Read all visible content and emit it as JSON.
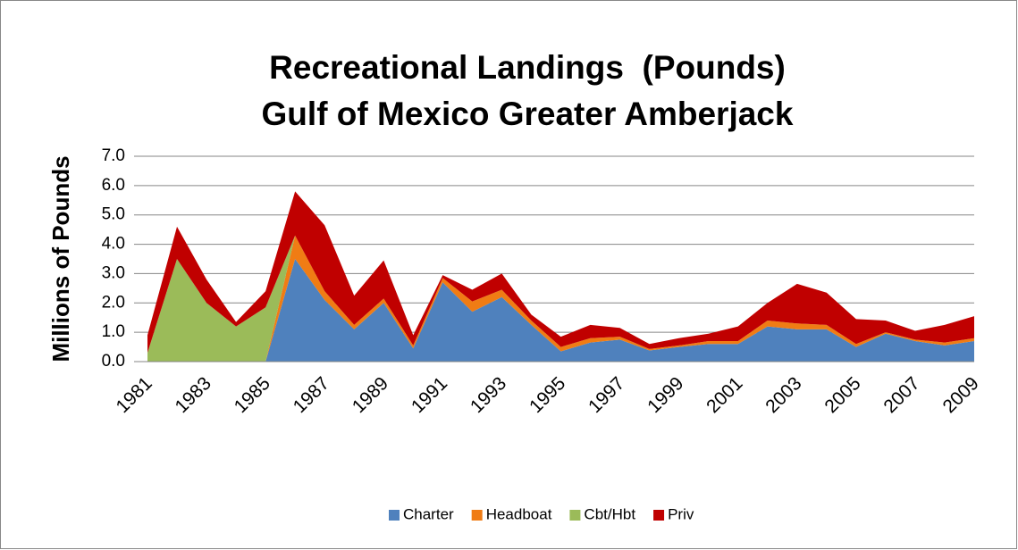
{
  "chart_data": {
    "type": "stacked_area",
    "title": "Recreational Landings  (Pounds)",
    "subtitle": "Gulf of Mexico Greater Amberjack",
    "y_label": "Millions of Pounds",
    "categories": [
      "1981",
      null,
      "1983",
      null,
      "1985",
      null,
      "1987",
      null,
      "1989",
      null,
      "1991",
      null,
      "1993",
      null,
      "1995",
      null,
      "1997",
      null,
      "1999",
      null,
      "2001",
      null,
      "2003",
      null,
      "2005",
      null,
      "2007",
      null,
      "2009"
    ],
    "series": [
      {
        "name": "Charter",
        "color": "#4f81bd",
        "values": [
          0,
          0,
          0,
          0,
          0,
          3.5,
          2.1,
          1.1,
          2.0,
          0.45,
          2.7,
          1.7,
          2.2,
          1.25,
          0.35,
          0.65,
          0.75,
          0.38,
          0.5,
          0.6,
          0.6,
          1.2,
          1.1,
          1.1,
          0.5,
          0.95,
          0.7,
          0.55,
          0.7
        ]
      },
      {
        "name": "Headboat",
        "color": "#f07c14",
        "values": [
          0,
          0,
          0,
          0,
          0,
          0.8,
          0.3,
          0.15,
          0.15,
          0.1,
          0.15,
          0.35,
          0.25,
          0.15,
          0.15,
          0.15,
          0.1,
          0.05,
          0.05,
          0.1,
          0.1,
          0.2,
          0.2,
          0.15,
          0.1,
          0.05,
          0.05,
          0.1,
          0.1
        ]
      },
      {
        "name": "Cbt/Hbt",
        "color": "#9bbb59",
        "values": [
          0.3,
          3.5,
          2.0,
          1.2,
          1.85,
          0,
          0,
          0,
          0,
          0,
          0,
          0,
          0,
          0,
          0,
          0,
          0,
          0,
          0,
          0,
          0,
          0,
          0,
          0,
          0,
          0,
          0,
          0,
          0
        ]
      },
      {
        "name": "Priv",
        "color": "#c00000",
        "values": [
          0.6,
          1.1,
          0.8,
          0.15,
          0.55,
          1.5,
          2.25,
          1.0,
          1.3,
          0.35,
          0.1,
          0.4,
          0.55,
          0.2,
          0.35,
          0.45,
          0.3,
          0.17,
          0.25,
          0.25,
          0.5,
          0.6,
          1.35,
          1.1,
          0.85,
          0.4,
          0.3,
          0.6,
          0.75
        ]
      }
    ],
    "ylim": [
      0,
      7
    ],
    "yticks": [
      {
        "value": 0,
        "label": "0.0"
      },
      {
        "value": 1,
        "label": "1.0"
      },
      {
        "value": 2,
        "label": "2.0"
      },
      {
        "value": 3,
        "label": "3.0"
      },
      {
        "value": 4,
        "label": "4.0"
      },
      {
        "value": 5,
        "label": "5.0"
      },
      {
        "value": 6,
        "label": "6.0"
      },
      {
        "value": 7,
        "label": "7.0"
      }
    ],
    "grid": true,
    "legend": "bottom"
  }
}
